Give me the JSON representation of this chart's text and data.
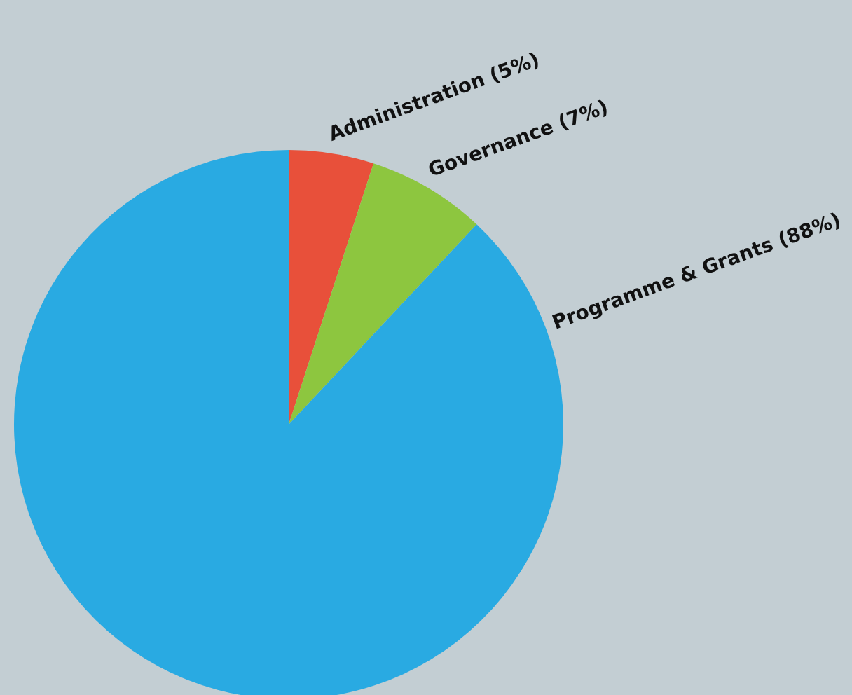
{
  "chart_data": {
    "type": "pie",
    "categories": [
      "Administration (5%)",
      "Governance (7%)",
      "Programme & Grants (88%)"
    ],
    "values": [
      5,
      7,
      88
    ],
    "colors": [
      "#e8503a",
      "#8dc63f",
      "#29aae2"
    ],
    "legend": false
  }
}
